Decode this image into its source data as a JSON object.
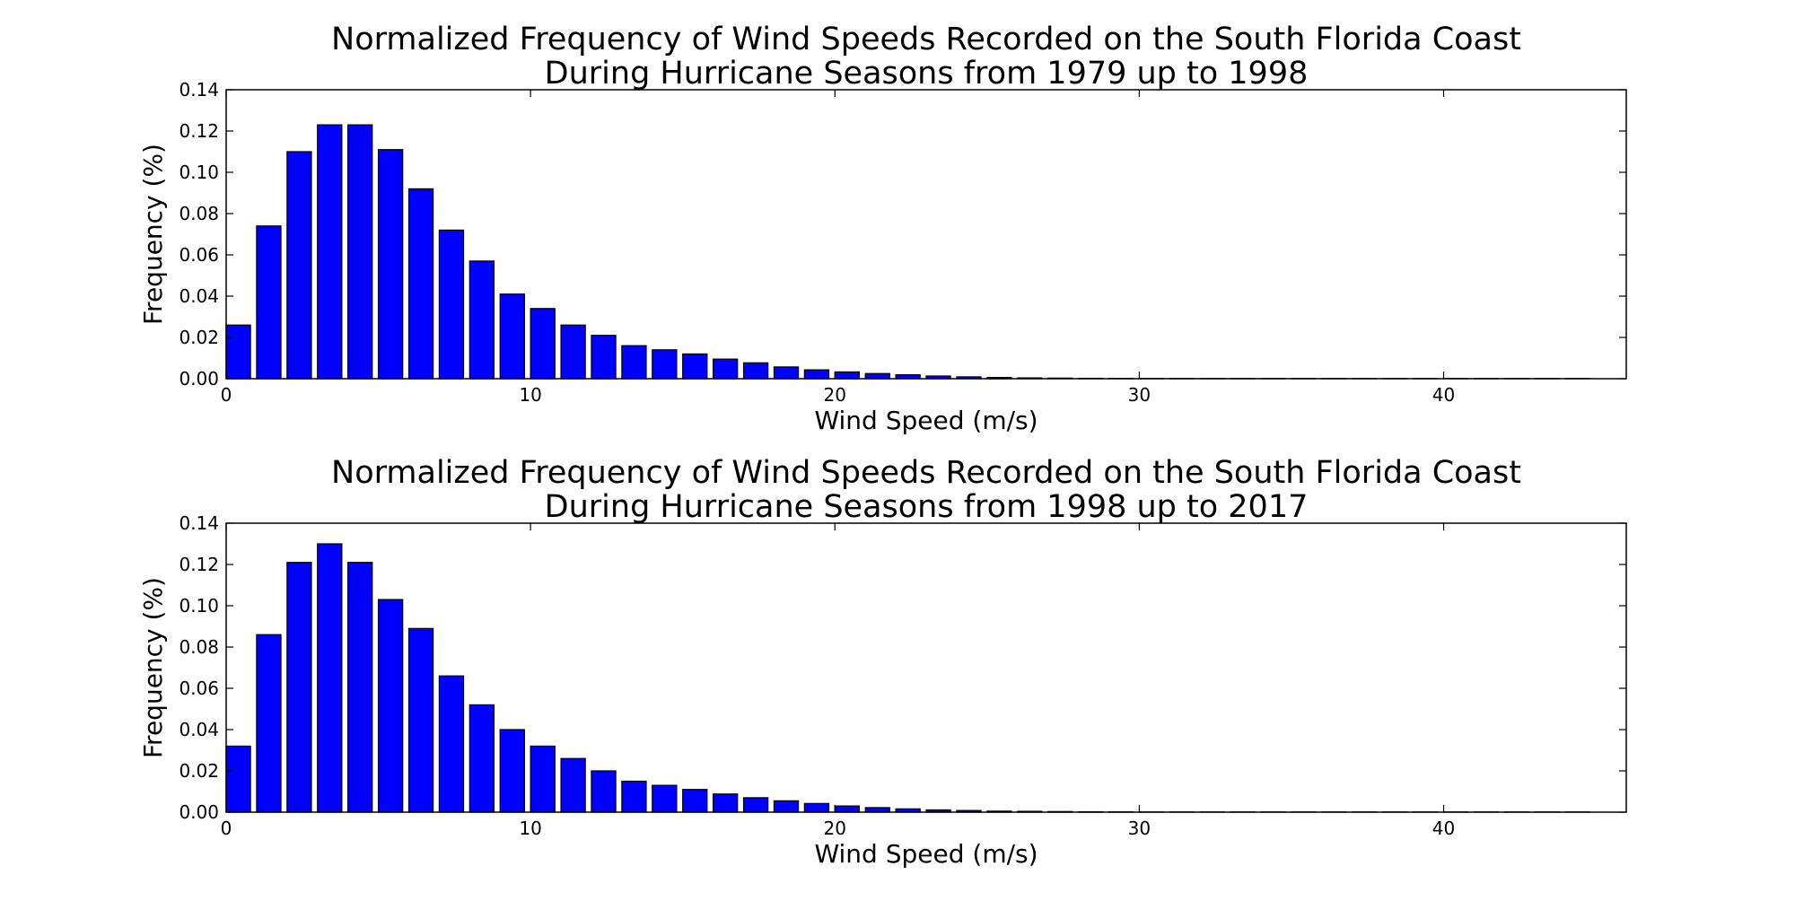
{
  "chart_data": [
    {
      "type": "bar",
      "title": "Normalized Frequency of Wind Speeds Recorded on the South Florida Coast",
      "subtitle": "During Hurricane Seasons from 1979 up to 1998",
      "xlabel": "Wind Speed (m/s)",
      "ylabel": "Frequency (%)",
      "xlim": [
        0,
        46
      ],
      "ylim": [
        0,
        0.14
      ],
      "x_ticks": [
        "0",
        "10",
        "20",
        "30",
        "40"
      ],
      "y_ticks": [
        "0.00",
        "0.02",
        "0.04",
        "0.06",
        "0.08",
        "0.10",
        "0.12",
        "0.14"
      ],
      "bar_color": "#0000ff",
      "edge_color": "#000000",
      "grid": false,
      "x": [
        0,
        1,
        2,
        3,
        4,
        5,
        6,
        7,
        8,
        9,
        10,
        11,
        12,
        13,
        14,
        15,
        16,
        17,
        18,
        19,
        20,
        21,
        22,
        23,
        24,
        25,
        26,
        27,
        28,
        29,
        30,
        31,
        32,
        33,
        34,
        35,
        36,
        37,
        38,
        39,
        40,
        41,
        42,
        43,
        44
      ],
      "values": [
        0.026,
        0.074,
        0.11,
        0.123,
        0.123,
        0.111,
        0.092,
        0.072,
        0.057,
        0.041,
        0.034,
        0.026,
        0.021,
        0.016,
        0.014,
        0.012,
        0.0095,
        0.0077,
        0.0057,
        0.0043,
        0.0033,
        0.0025,
        0.0019,
        0.0013,
        0.0009,
        0.0006,
        0.0004,
        0.0003,
        0.0002,
        0.00015,
        0.0001,
        0.0001,
        0.0001,
        0.0001,
        0.0001,
        0.0001,
        0.0001,
        0.0001,
        0.0001,
        0.0001,
        0.0001,
        0.0001,
        0.0001,
        0.0001,
        0.0001
      ]
    },
    {
      "type": "bar",
      "title": "Normalized Frequency of Wind Speeds Recorded on the South Florida Coast",
      "subtitle": "During Hurricane Seasons from 1998 up to 2017",
      "xlabel": "Wind Speed (m/s)",
      "ylabel": "Frequency (%)",
      "xlim": [
        0,
        46
      ],
      "ylim": [
        0,
        0.14
      ],
      "x_ticks": [
        "0",
        "10",
        "20",
        "30",
        "40"
      ],
      "y_ticks": [
        "0.00",
        "0.02",
        "0.04",
        "0.06",
        "0.08",
        "0.10",
        "0.12",
        "0.14"
      ],
      "bar_color": "#0000ff",
      "edge_color": "#000000",
      "grid": false,
      "x": [
        0,
        1,
        2,
        3,
        4,
        5,
        6,
        7,
        8,
        9,
        10,
        11,
        12,
        13,
        14,
        15,
        16,
        17,
        18,
        19,
        20,
        21,
        22,
        23,
        24,
        25,
        26,
        27,
        28,
        29,
        30,
        31,
        32,
        33,
        34,
        35,
        36,
        37,
        38,
        39,
        40,
        41,
        42,
        43,
        44
      ],
      "values": [
        0.032,
        0.086,
        0.121,
        0.13,
        0.121,
        0.103,
        0.089,
        0.066,
        0.052,
        0.04,
        0.032,
        0.026,
        0.02,
        0.015,
        0.013,
        0.011,
        0.0088,
        0.007,
        0.0055,
        0.0042,
        0.003,
        0.0022,
        0.0016,
        0.0011,
        0.0008,
        0.0005,
        0.0004,
        0.0003,
        0.0002,
        0.00015,
        0.0001,
        0.0001,
        0.0001,
        0.0001,
        0.0001,
        0.0001,
        0.0001,
        0.0001,
        0.0001,
        0.0001,
        0.0001,
        0.0001,
        0.0001,
        0.0001,
        0.0001
      ]
    }
  ]
}
